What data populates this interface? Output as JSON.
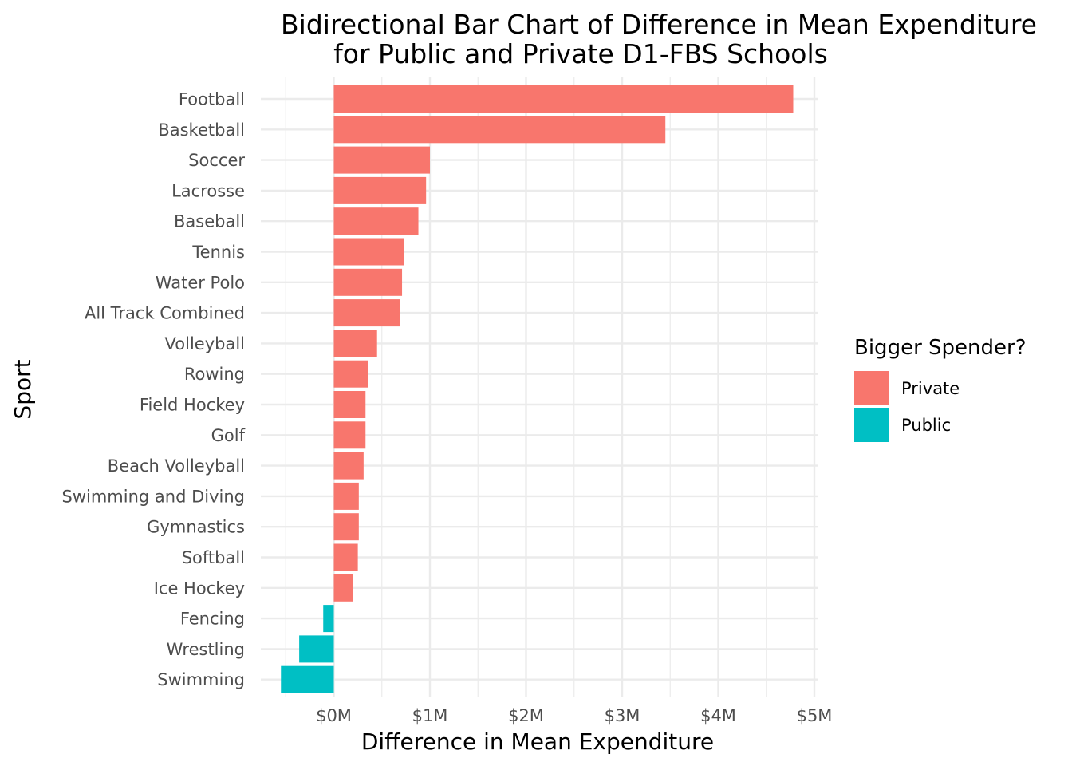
{
  "chart_data": {
    "type": "bar",
    "orientation": "horizontal",
    "title_line1": "Bidirectional Bar Chart of Difference in Mean Expenditure",
    "title_line2": "for Public and Private D1-FBS Schools",
    "xlabel": "Difference in Mean Expenditure",
    "ylabel": "Sport",
    "xlim": [
      -0.55,
      5.0
    ],
    "x_ticks": [
      0,
      1,
      2,
      3,
      4,
      5
    ],
    "x_tick_labels": [
      "$0M",
      "$1M",
      "$2M",
      "$3M",
      "$4M",
      "$5M"
    ],
    "grid": true,
    "legend": {
      "title": "Bigger Spender?",
      "position": "right",
      "entries": [
        {
          "label": "Private",
          "color": "#F8766D"
        },
        {
          "label": "Public",
          "color": "#00BFC4"
        }
      ]
    },
    "categories": [
      "Football",
      "Basketball",
      "Soccer",
      "Lacrosse",
      "Baseball",
      "Tennis",
      "Water Polo",
      "All Track Combined",
      "Volleyball",
      "Rowing",
      "Field Hockey",
      "Golf",
      "Beach Volleyball",
      "Swimming and Diving",
      "Gymnastics",
      "Softball",
      "Ice Hockey",
      "Fencing",
      "Wrestling",
      "Swimming"
    ],
    "values": [
      4.78,
      3.45,
      1.0,
      0.96,
      0.88,
      0.73,
      0.71,
      0.69,
      0.45,
      0.36,
      0.33,
      0.33,
      0.31,
      0.26,
      0.26,
      0.25,
      0.2,
      -0.11,
      -0.36,
      -0.55
    ],
    "groups": [
      "Private",
      "Private",
      "Private",
      "Private",
      "Private",
      "Private",
      "Private",
      "Private",
      "Private",
      "Private",
      "Private",
      "Private",
      "Private",
      "Private",
      "Private",
      "Private",
      "Private",
      "Public",
      "Public",
      "Public"
    ]
  }
}
